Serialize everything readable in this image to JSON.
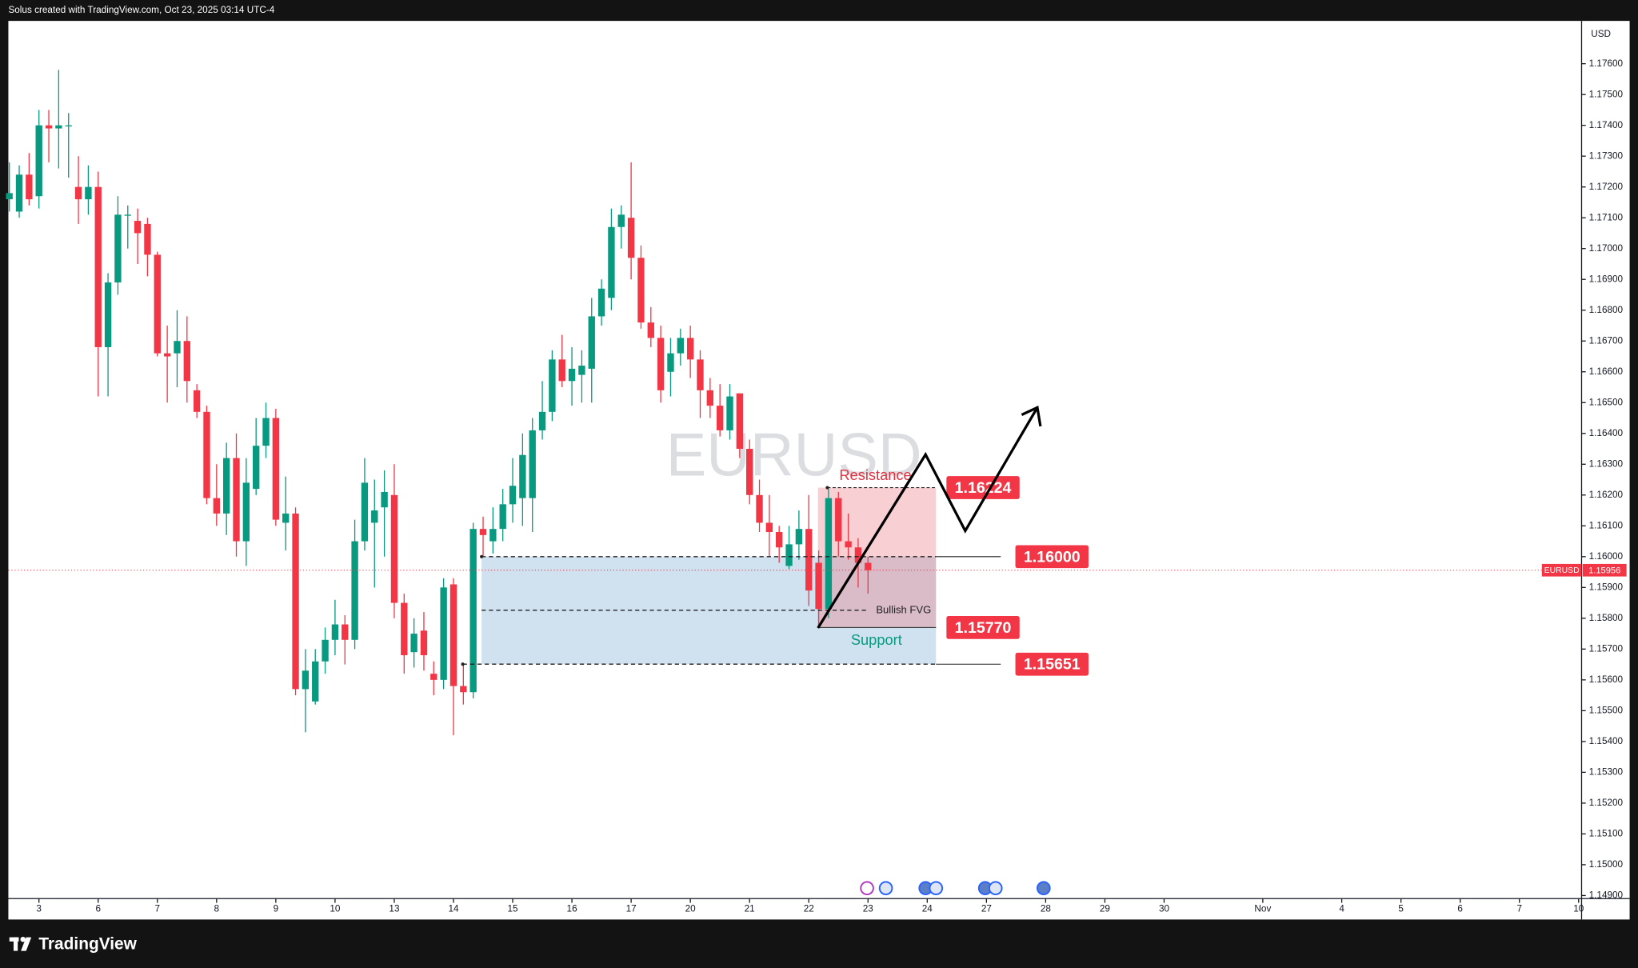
{
  "header": "Solus created with TradingView.com, Oct 23, 2025 03:14 UTC-4",
  "footer": {
    "brand": "TradingView"
  },
  "chart_data": {
    "type": "candlestick",
    "symbol": "EURUSD",
    "currency": "USD",
    "up_color": "#089981",
    "down_color": "#f23645",
    "ylim": [
      1.1489,
      1.17739
    ],
    "xlim": [
      -0.1,
      159.3
    ],
    "yticks": [
      {
        "value": 1.149,
        "label": "1.14900"
      },
      {
        "value": 1.15,
        "label": "1.15000"
      },
      {
        "value": 1.151,
        "label": "1.15100"
      },
      {
        "value": 1.152,
        "label": "1.15200"
      },
      {
        "value": 1.153,
        "label": "1.15300"
      },
      {
        "value": 1.154,
        "label": "1.15400"
      },
      {
        "value": 1.155,
        "label": "1.15500"
      },
      {
        "value": 1.156,
        "label": "1.15600"
      },
      {
        "value": 1.157,
        "label": "1.15700"
      },
      {
        "value": 1.158,
        "label": "1.15800"
      },
      {
        "value": 1.159,
        "label": "1.15900"
      },
      {
        "value": 1.16,
        "label": "1.16000"
      },
      {
        "value": 1.161,
        "label": "1.16100"
      },
      {
        "value": 1.162,
        "label": "1.16200"
      },
      {
        "value": 1.163,
        "label": "1.16300"
      },
      {
        "value": 1.164,
        "label": "1.16400"
      },
      {
        "value": 1.165,
        "label": "1.16500"
      },
      {
        "value": 1.166,
        "label": "1.16600"
      },
      {
        "value": 1.167,
        "label": "1.16700"
      },
      {
        "value": 1.168,
        "label": "1.16800"
      },
      {
        "value": 1.169,
        "label": "1.16900"
      },
      {
        "value": 1.17,
        "label": "1.17000"
      },
      {
        "value": 1.171,
        "label": "1.17100"
      },
      {
        "value": 1.172,
        "label": "1.17200"
      },
      {
        "value": 1.173,
        "label": "1.17300"
      },
      {
        "value": 1.174,
        "label": "1.17400"
      },
      {
        "value": 1.175,
        "label": "1.17500"
      },
      {
        "value": 1.176,
        "label": "1.17600"
      }
    ],
    "xticks": [
      {
        "value": 3,
        "label": "3"
      },
      {
        "value": 9,
        "label": "6"
      },
      {
        "value": 15,
        "label": "7"
      },
      {
        "value": 21,
        "label": "8"
      },
      {
        "value": 27,
        "label": "9"
      },
      {
        "value": 33,
        "label": "10"
      },
      {
        "value": 39,
        "label": "13"
      },
      {
        "value": 45,
        "label": "14"
      },
      {
        "value": 51,
        "label": "15"
      },
      {
        "value": 57,
        "label": "16"
      },
      {
        "value": 63,
        "label": "17"
      },
      {
        "value": 69,
        "label": "20"
      },
      {
        "value": 75,
        "label": "21"
      },
      {
        "value": 81,
        "label": "22"
      },
      {
        "value": 87,
        "label": "23"
      },
      {
        "value": 93,
        "label": "24"
      },
      {
        "value": 99,
        "label": "27"
      },
      {
        "value": 105,
        "label": "28"
      },
      {
        "value": 111,
        "label": "29"
      },
      {
        "value": 117,
        "label": "30"
      },
      {
        "value": 127,
        "label": "Nov"
      },
      {
        "value": 135,
        "label": "4"
      },
      {
        "value": 141,
        "label": "5"
      },
      {
        "value": 147,
        "label": "6"
      },
      {
        "value": 153,
        "label": "7"
      },
      {
        "value": 159,
        "label": "10"
      }
    ],
    "open": [
      1.1716,
      1.1712,
      1.1724,
      1.1717,
      1.174,
      1.1739,
      1.174,
      1.172,
      1.1716,
      1.172,
      1.1668,
      1.1689,
      1.1711,
      1.1709,
      1.1708,
      1.1698,
      1.1666,
      1.1666,
      1.167,
      1.1654,
      1.1647,
      1.1619,
      1.1614,
      1.1632,
      1.1605,
      1.1622,
      1.1636,
      1.1645,
      1.1611,
      1.1614,
      1.1557,
      1.1553,
      1.1566,
      1.1573,
      1.1578,
      1.1573,
      1.1605,
      1.1611,
      1.1616,
      1.162,
      1.1585,
      1.1569,
      1.1576,
      1.1562,
      1.156,
      1.1591,
      1.1558,
      1.1556,
      1.1609,
      1.1605,
      1.1609,
      1.1617,
      1.1619,
      1.1619,
      1.1641,
      1.1647,
      1.1664,
      1.1657,
      1.1659,
      1.1661,
      1.1678,
      1.1684,
      1.1707,
      1.171,
      1.1697,
      1.1676,
      1.1671,
      1.166,
      1.1666,
      1.1671,
      1.1664,
      1.1654,
      1.1649,
      1.1641,
      1.1653,
      1.1635,
      1.162,
      1.1611,
      1.1608,
      1.1597,
      1.1604,
      1.1609,
      1.1598,
      1.1583,
      1.1619,
      1.1605,
      1.1603,
      1.1598
    ],
    "high": [
      1.1728,
      1.1727,
      1.1731,
      1.1745,
      1.1745,
      1.1758,
      1.1744,
      1.173,
      1.1727,
      1.1725,
      1.1692,
      1.1717,
      1.1714,
      1.1713,
      1.171,
      1.1699,
      1.1675,
      1.168,
      1.1678,
      1.1656,
      1.1649,
      1.163,
      1.1637,
      1.164,
      1.1632,
      1.1645,
      1.165,
      1.1648,
      1.1626,
      1.1616,
      1.157,
      1.157,
      1.1577,
      1.1586,
      1.1581,
      1.1612,
      1.1632,
      1.1625,
      1.1628,
      1.163,
      1.1588,
      1.158,
      1.1582,
      1.1566,
      1.1593,
      1.1593,
      1.1565,
      1.1611,
      1.1613,
      1.1616,
      1.1622,
      1.1632,
      1.164,
      1.1645,
      1.1657,
      1.1667,
      1.1672,
      1.1668,
      1.1667,
      1.1684,
      1.169,
      1.1713,
      1.1714,
      1.1728,
      1.1701,
      1.1681,
      1.1675,
      1.1671,
      1.1674,
      1.1675,
      1.1667,
      1.1658,
      1.1656,
      1.1656,
      1.1653,
      1.1638,
      1.1625,
      1.162,
      1.161,
      1.161,
      1.1615,
      1.162,
      1.1602,
      1.1622,
      1.1621,
      1.1614,
      1.1606,
      1.16
    ],
    "low": [
      1.1712,
      1.171,
      1.1714,
      1.1713,
      1.1728,
      1.1726,
      1.1723,
      1.1708,
      1.1711,
      1.1652,
      1.1652,
      1.1685,
      1.17,
      1.1695,
      1.1691,
      1.1665,
      1.165,
      1.1655,
      1.165,
      1.1645,
      1.1617,
      1.161,
      1.1607,
      1.16,
      1.1597,
      1.162,
      1.1632,
      1.161,
      1.1602,
      1.1555,
      1.1543,
      1.1552,
      1.1562,
      1.1568,
      1.1565,
      1.157,
      1.1602,
      1.159,
      1.16,
      1.158,
      1.1562,
      1.1564,
      1.1563,
      1.1555,
      1.1557,
      1.1542,
      1.1552,
      1.1554,
      1.16,
      1.1601,
      1.1605,
      1.1611,
      1.161,
      1.1608,
      1.1638,
      1.1644,
      1.1655,
      1.1649,
      1.165,
      1.165,
      1.1675,
      1.168,
      1.17,
      1.169,
      1.1674,
      1.1668,
      1.165,
      1.1652,
      1.1662,
      1.1658,
      1.1645,
      1.1645,
      1.1639,
      1.1638,
      1.1632,
      1.1617,
      1.1608,
      1.16,
      1.1598,
      1.1596,
      1.1599,
      1.1584,
      1.1577,
      1.158,
      1.16,
      1.1599,
      1.159,
      1.1588
    ],
    "close": [
      1.1718,
      1.1724,
      1.1716,
      1.174,
      1.1739,
      1.174,
      1.174,
      1.1716,
      1.172,
      1.1668,
      1.1689,
      1.1711,
      1.1711,
      1.1705,
      1.1698,
      1.1666,
      1.1665,
      1.167,
      1.1657,
      1.1647,
      1.1619,
      1.1614,
      1.1632,
      1.1605,
      1.1624,
      1.1636,
      1.1645,
      1.1612,
      1.1614,
      1.1557,
      1.1563,
      1.1566,
      1.1573,
      1.1578,
      1.1573,
      1.1605,
      1.1624,
      1.1615,
      1.1621,
      1.1585,
      1.1568,
      1.1575,
      1.1568,
      1.156,
      1.159,
      1.1558,
      1.1556,
      1.1609,
      1.1607,
      1.1609,
      1.1617,
      1.1623,
      1.1633,
      1.1641,
      1.1647,
      1.1664,
      1.1657,
      1.1661,
      1.1662,
      1.1678,
      1.1687,
      1.1707,
      1.1711,
      1.1697,
      1.1676,
      1.1671,
      1.1654,
      1.1666,
      1.1671,
      1.1664,
      1.1654,
      1.1649,
      1.1641,
      1.1652,
      1.1635,
      1.162,
      1.1611,
      1.1608,
      1.1603,
      1.1604,
      1.1609,
      1.1589,
      1.1583,
      1.1619,
      1.1605,
      1.1603,
      1.1598,
      1.15956
    ],
    "current_price": {
      "value": 1.15956,
      "label": "1.15956"
    },
    "levels": [
      {
        "value": 1.16224,
        "label": "1.16224"
      },
      {
        "value": 1.16,
        "label": "1.16000"
      },
      {
        "value": 1.1577,
        "label": "1.15770"
      },
      {
        "value": 1.15651,
        "label": "1.15651"
      }
    ],
    "fvg_level": 1.15826,
    "annotations": {
      "resistance": "Resistance",
      "support": "Support",
      "fvg": "Bullish FVG"
    }
  }
}
